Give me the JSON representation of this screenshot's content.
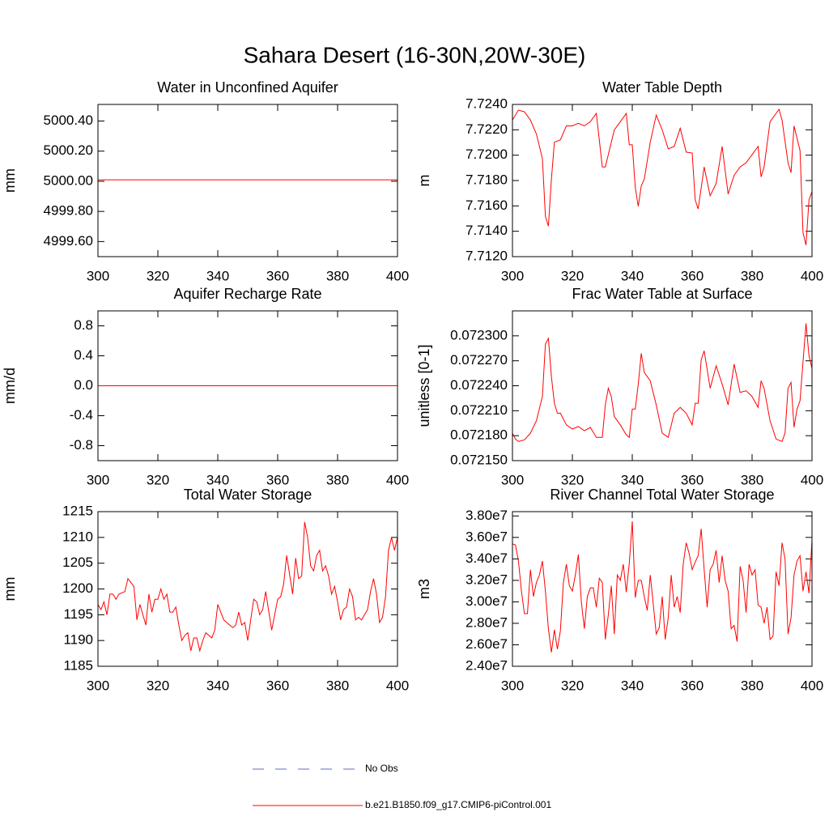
{
  "title": "Sahara Desert (16-30N,20W-30E)",
  "legend": [
    {
      "label": "No Obs",
      "color": "#5a6ec8",
      "dashed": true
    },
    {
      "label": "b.e21.B1850.f09_g17.CMIP6-piControl.001",
      "color": "#ff0000",
      "dashed": false
    }
  ],
  "chart_data": [
    {
      "type": "line",
      "title": "Water in Unconfined Aquifer",
      "ylabel": "mm",
      "color": "#ff0000",
      "x": [
        300,
        400
      ],
      "values": [
        5000.01,
        5000.01
      ],
      "xlim": [
        300,
        400
      ],
      "xticks": [
        300,
        320,
        340,
        360,
        380,
        400
      ],
      "ylim": [
        4999.5,
        5000.51
      ],
      "yticks": [
        {
          "value": 4999.6,
          "label": "4999.60"
        },
        {
          "value": 4999.8,
          "label": "4999.80"
        },
        {
          "value": 5000.0,
          "label": "5000.00"
        },
        {
          "value": 5000.2,
          "label": "5000.20"
        },
        {
          "value": 5000.4,
          "label": "5000.40"
        }
      ]
    },
    {
      "type": "line",
      "title": "Water Table Depth",
      "ylabel": "m",
      "color": "#ff0000",
      "x": [
        300,
        302,
        304,
        306,
        308,
        310,
        311,
        312,
        313,
        314,
        316,
        318,
        320,
        322,
        324,
        326,
        328,
        330,
        331,
        332,
        334,
        336,
        338,
        339,
        340,
        341,
        342,
        343,
        344,
        346,
        348,
        350,
        352,
        354,
        356,
        358,
        360,
        361,
        362,
        364,
        366,
        368,
        370,
        372,
        374,
        376,
        378,
        380,
        382,
        383,
        384,
        386,
        388,
        389,
        390,
        392,
        393,
        394,
        395,
        396,
        397,
        398,
        399,
        400
      ],
      "values": [
        7.72277,
        7.72355,
        7.72342,
        7.72277,
        7.72167,
        7.71972,
        7.71518,
        7.7144,
        7.7181,
        7.72102,
        7.72121,
        7.72231,
        7.72231,
        7.72251,
        7.72231,
        7.72264,
        7.72329,
        7.71907,
        7.71907,
        7.72004,
        7.72199,
        7.72264,
        7.72329,
        7.72082,
        7.72082,
        7.71745,
        7.71596,
        7.71758,
        7.7181,
        7.72102,
        7.72316,
        7.72199,
        7.7205,
        7.72069,
        7.72212,
        7.72024,
        7.72017,
        7.71648,
        7.71576,
        7.71907,
        7.7168,
        7.71777,
        7.72069,
        7.71693,
        7.71842,
        7.71907,
        7.7194,
        7.72004,
        7.72069,
        7.71829,
        7.71907,
        7.72264,
        7.72329,
        7.72361,
        7.72277,
        7.7194,
        7.71862,
        7.72231,
        7.72134,
        7.72037,
        7.71388,
        7.71291,
        7.71648,
        7.71712
      ],
      "xlim": [
        300,
        400
      ],
      "xticks": [
        300,
        320,
        340,
        360,
        380,
        400
      ],
      "ylim": [
        7.712,
        7.724
      ],
      "yticks": [
        {
          "value": 7.712,
          "label": "7.7120"
        },
        {
          "value": 7.714,
          "label": "7.7140"
        },
        {
          "value": 7.716,
          "label": "7.7160"
        },
        {
          "value": 7.718,
          "label": "7.7180"
        },
        {
          "value": 7.72,
          "label": "7.7200"
        },
        {
          "value": 7.722,
          "label": "7.7220"
        },
        {
          "value": 7.724,
          "label": "7.7240"
        }
      ]
    },
    {
      "type": "line",
      "title": "Aquifer Recharge Rate",
      "ylabel": "mm/d",
      "color": "#ff0000",
      "x": [
        300,
        400
      ],
      "values": [
        0,
        0
      ],
      "xlim": [
        300,
        400
      ],
      "xticks": [
        300,
        320,
        340,
        360,
        380,
        400
      ],
      "ylim": [
        -1,
        1
      ],
      "yticks": [
        -0.8,
        -0.4,
        {
          "value": 0,
          "label": "0.0"
        },
        0.4,
        0.8
      ]
    },
    {
      "type": "line",
      "title": "Frac Water Table at Surface",
      "ylabel": "unitless [0-1]",
      "color": "#ff0000",
      "x": [
        300,
        301,
        302,
        304,
        306,
        308,
        310,
        311,
        312,
        313,
        314,
        315,
        316,
        318,
        320,
        322,
        324,
        326,
        328,
        330,
        331,
        332,
        333,
        334,
        336,
        338,
        339,
        340,
        341,
        342,
        343,
        344,
        346,
        348,
        350,
        352,
        354,
        356,
        358,
        360,
        361,
        362,
        363,
        364,
        366,
        368,
        370,
        372,
        374,
        376,
        378,
        380,
        382,
        383,
        384,
        386,
        388,
        390,
        391,
        392,
        393,
        394,
        395,
        396,
        398,
        399,
        400
      ],
      "values": [
        0.072183,
        0.072176,
        0.072173,
        0.072175,
        0.072183,
        0.072198,
        0.072227,
        0.07229,
        0.072297,
        0.072251,
        0.072219,
        0.072207,
        0.072207,
        0.072193,
        0.072188,
        0.072191,
        0.072186,
        0.07219,
        0.072178,
        0.072178,
        0.072217,
        0.072237,
        0.072227,
        0.072203,
        0.072193,
        0.072181,
        0.072178,
        0.072212,
        0.072212,
        0.072242,
        0.072279,
        0.072256,
        0.072246,
        0.072217,
        0.072183,
        0.072178,
        0.072207,
        0.072214,
        0.072207,
        0.072193,
        0.072219,
        0.072219,
        0.072271,
        0.072282,
        0.072237,
        0.072264,
        0.072242,
        0.072217,
        0.072266,
        0.072232,
        0.072234,
        0.072227,
        0.072214,
        0.072246,
        0.072237,
        0.072198,
        0.072176,
        0.072173,
        0.072183,
        0.072237,
        0.072244,
        0.07219,
        0.072212,
        0.072222,
        0.072315,
        0.072276,
        0.072261
      ],
      "xlim": [
        300,
        400
      ],
      "xticks": [
        300,
        320,
        340,
        360,
        380,
        400
      ],
      "ylim": [
        0.07215,
        0.07233
      ],
      "yticks": [
        {
          "value": 0.07215,
          "label": "0.072150"
        },
        {
          "value": 0.07218,
          "label": "0.072180"
        },
        {
          "value": 0.07221,
          "label": "0.072210"
        },
        {
          "value": 0.07224,
          "label": "0.072240"
        },
        {
          "value": 0.07227,
          "label": "0.072270"
        },
        {
          "value": 0.0723,
          "label": "0.072300"
        }
      ]
    },
    {
      "type": "line",
      "title": "Total Water Storage",
      "ylabel": "mm",
      "color": "#ff0000",
      "x": [
        300,
        301,
        302,
        303,
        304,
        305,
        306,
        307,
        309,
        310,
        312,
        313,
        314,
        316,
        317,
        318,
        319,
        320,
        321,
        322,
        323,
        324,
        325,
        326,
        327,
        328,
        329,
        330,
        331,
        332,
        333,
        334,
        335,
        336,
        338,
        339,
        340,
        342,
        344,
        345,
        346,
        347,
        348,
        349,
        350,
        352,
        353,
        354,
        355,
        356,
        358,
        360,
        361,
        362,
        363,
        365,
        366,
        367,
        368,
        369,
        370,
        371,
        372,
        373,
        374,
        375,
        376,
        377,
        378,
        379,
        380,
        381,
        382,
        383,
        384,
        385,
        386,
        387,
        388,
        390,
        391,
        392,
        393,
        394,
        395,
        396,
        397,
        398,
        399,
        400
      ],
      "values": [
        1197,
        1196,
        1197.5,
        1195,
        1199,
        1199,
        1198,
        1199,
        1199.5,
        1202,
        1200.5,
        1194,
        1197,
        1193,
        1199,
        1195.5,
        1198,
        1198,
        1200,
        1198,
        1199,
        1195.5,
        1195.5,
        1196.5,
        1193,
        1190,
        1191,
        1191.5,
        1188,
        1190.5,
        1190.5,
        1188,
        1190,
        1191.5,
        1190.5,
        1192,
        1197,
        1194,
        1193,
        1192.5,
        1193,
        1195.5,
        1193,
        1193.5,
        1190,
        1198,
        1197.5,
        1195,
        1196,
        1199.5,
        1192,
        1198,
        1198.5,
        1201,
        1206.5,
        1199,
        1206,
        1202,
        1202.5,
        1213,
        1210,
        1204.5,
        1203.5,
        1206.5,
        1207.5,
        1203.5,
        1204.5,
        1202.5,
        1199,
        1200.5,
        1197.5,
        1194,
        1196,
        1196.5,
        1200,
        1198.5,
        1194,
        1194.5,
        1194,
        1196,
        1199.5,
        1202,
        1199,
        1193.5,
        1194.5,
        1198.5,
        1207.5,
        1210,
        1207.5,
        1210
      ],
      "xlim": [
        300,
        400
      ],
      "xticks": [
        300,
        320,
        340,
        360,
        380,
        400
      ],
      "ylim": [
        1185,
        1215
      ],
      "yticks": [
        1185,
        1190,
        1195,
        1200,
        1205,
        1210,
        1215
      ]
    },
    {
      "type": "line",
      "title": "River Channel Total Water Storage",
      "ylabel": "m3",
      "color": "#ff0000",
      "x": [
        300,
        301,
        302,
        303,
        304,
        305,
        306,
        307,
        308,
        309,
        310,
        311,
        312,
        313,
        314,
        315,
        316,
        317,
        318,
        319,
        320,
        321,
        322,
        323,
        324,
        325,
        326,
        327,
        328,
        329,
        330,
        331,
        332,
        333,
        334,
        335,
        336,
        337,
        338,
        339,
        340,
        341,
        342,
        343,
        344,
        345,
        346,
        347,
        348,
        349,
        350,
        351,
        352,
        353,
        354,
        355,
        356,
        357,
        358,
        359,
        360,
        361,
        362,
        363,
        364,
        365,
        366,
        367,
        368,
        369,
        370,
        371,
        372,
        373,
        374,
        375,
        376,
        377,
        378,
        379,
        380,
        381,
        382,
        383,
        384,
        385,
        386,
        387,
        388,
        389,
        390,
        391,
        392,
        393,
        394,
        395,
        396,
        397,
        398,
        399,
        400
      ],
      "values": [
        35400000,
        35300000,
        33800000,
        31000000,
        28900000,
        28900000,
        33000000,
        30500000,
        31800000,
        32500000,
        33800000,
        31000000,
        27500000,
        25300000,
        27400000,
        25600000,
        27300000,
        31800000,
        33500000,
        31500000,
        31000000,
        32500000,
        34400000,
        30000000,
        27500000,
        30500000,
        31300000,
        31300000,
        29500000,
        32200000,
        31800000,
        26500000,
        28800000,
        31500000,
        27000000,
        32500000,
        32000000,
        33500000,
        30900000,
        33600000,
        37500000,
        30400000,
        32000000,
        32000000,
        30500000,
        29200000,
        32500000,
        29800000,
        27000000,
        27600000,
        30500000,
        26500000,
        28500000,
        32500000,
        29500000,
        30500000,
        29000000,
        33500000,
        35500000,
        34500000,
        33000000,
        33700000,
        34300000,
        36800000,
        33000000,
        29500000,
        33000000,
        33500000,
        34800000,
        31800000,
        34300000,
        32000000,
        31000000,
        27500000,
        27800000,
        26300000,
        33300000,
        32000000,
        29000000,
        33500000,
        32500000,
        33000000,
        29700000,
        29500000,
        28000000,
        29500000,
        26500000,
        26800000,
        32800000,
        31500000,
        35500000,
        34000000,
        27000000,
        28500000,
        32500000,
        33800000,
        34300000,
        31000000,
        32800000,
        30800000,
        35800000
      ],
      "xlim": [
        300,
        400
      ],
      "xticks": [
        300,
        320,
        340,
        360,
        380,
        400
      ],
      "ylim": [
        24000000,
        38400000
      ],
      "yticks": [
        {
          "value": 24000000,
          "label": "2.40e7"
        },
        {
          "value": 26000000,
          "label": "2.60e7"
        },
        {
          "value": 28000000,
          "label": "2.80e7"
        },
        {
          "value": 30000000,
          "label": "3.00e7"
        },
        {
          "value": 32000000,
          "label": "3.20e7"
        },
        {
          "value": 34000000,
          "label": "3.40e7"
        },
        {
          "value": 36000000,
          "label": "3.60e7"
        },
        {
          "value": 38000000,
          "label": "3.80e7"
        }
      ]
    }
  ]
}
